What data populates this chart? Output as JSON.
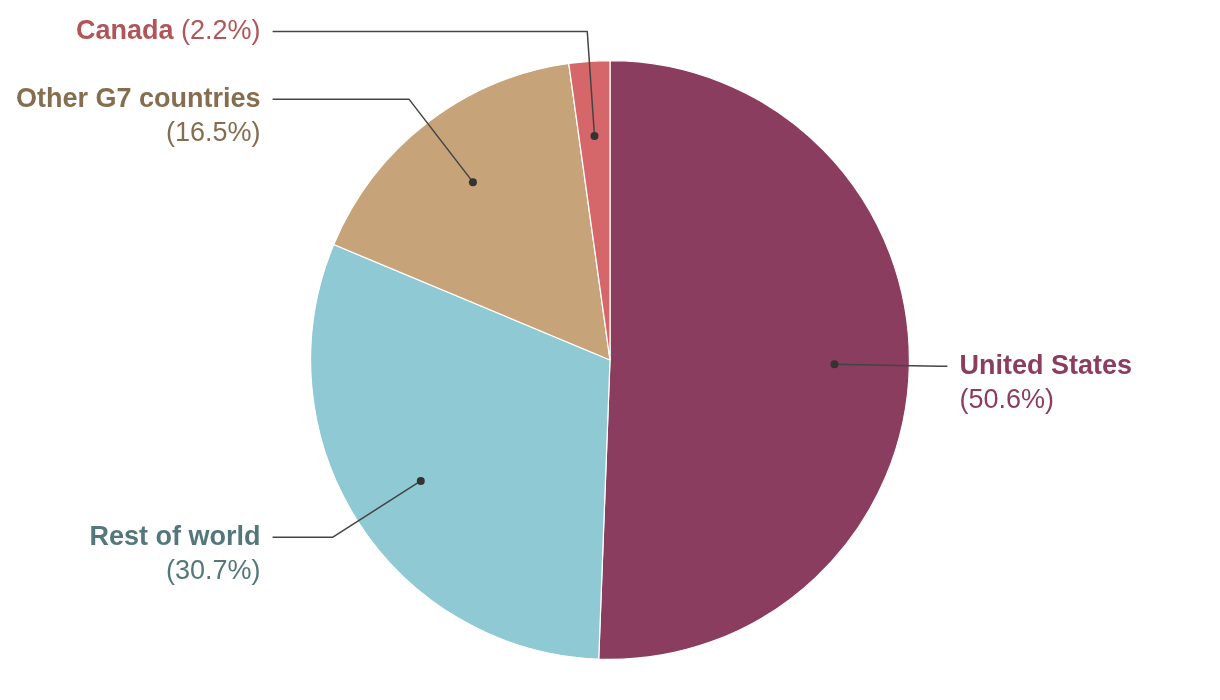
{
  "chart_data": {
    "type": "pie",
    "categories": [
      "United States",
      "Rest of world",
      "Other G7 countries",
      "Canada"
    ],
    "values": [
      50.6,
      30.7,
      16.5,
      2.2
    ],
    "colors": [
      "#8b3d5f",
      "#8fc9d3",
      "#c6a378",
      "#d5676a"
    ],
    "value_labels": [
      "(50.6%)",
      "(30.7%)",
      "(16.5%)",
      "(2.2%)"
    ]
  }
}
